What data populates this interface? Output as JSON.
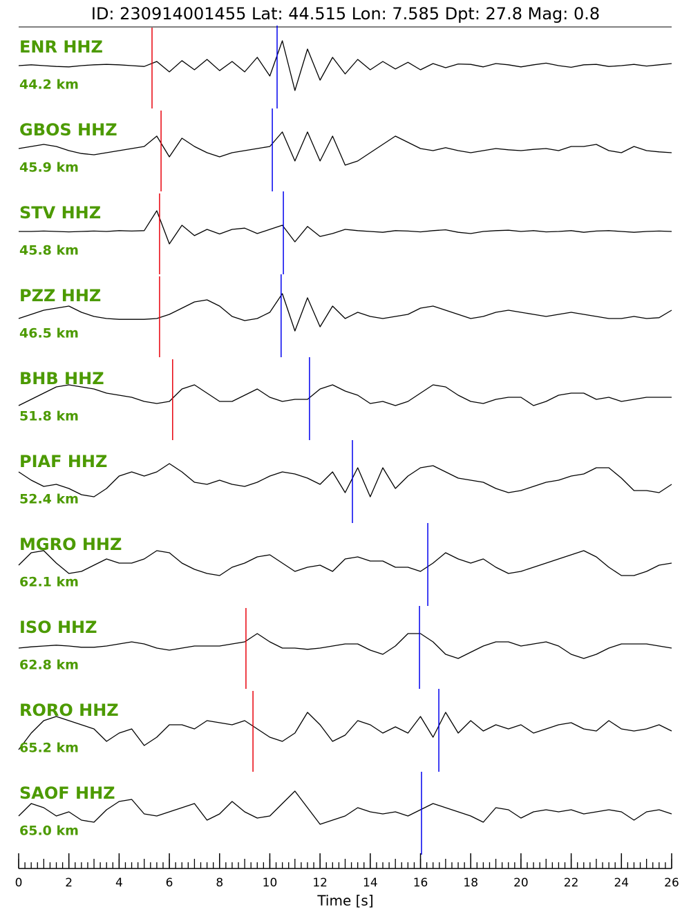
{
  "chart_data": {
    "type": "seismogram",
    "title": "ID: 230914001455 Lat:  44.515 Lon:   7.585 Dpt:    27.8 Mag:   0.8",
    "xlabel": "Time [s]",
    "xlim": [
      0,
      26
    ],
    "xticks": [
      0,
      2,
      4,
      6,
      8,
      10,
      12,
      14,
      16,
      18,
      20,
      22,
      24,
      26
    ],
    "xminor_step": 0.25,
    "ylim": [
      -1,
      1
    ],
    "label_color": "#4c9a00",
    "trace_color": "#000000",
    "p_color": "#e8000b",
    "s_color": "#0000ee",
    "x": [
      0,
      0.5,
      1,
      1.5,
      2,
      2.5,
      3,
      3.5,
      4,
      4.5,
      5,
      5.5,
      6,
      6.5,
      7,
      7.5,
      8,
      8.5,
      9,
      9.5,
      10,
      10.5,
      11,
      11.5,
      12,
      12.5,
      13,
      13.5,
      14,
      14.5,
      15,
      15.5,
      16,
      16.5,
      17,
      17.5,
      18,
      18.5,
      19,
      19.5,
      20,
      20.5,
      21,
      21.5,
      22,
      22.5,
      23,
      23.5,
      24,
      24.5,
      25,
      25.5,
      26
    ],
    "series": [
      {
        "name": "ENR HHZ",
        "distance": "44.2 km",
        "p_pick": 5.31,
        "s_pick": 10.29,
        "values": [
          0,
          0.02,
          0,
          -0.02,
          -0.03,
          0,
          0.02,
          0.03,
          0.02,
          0,
          -0.02,
          0.1,
          -0.15,
          0.12,
          -0.1,
          0.15,
          -0.12,
          0.1,
          -0.15,
          0.2,
          -0.25,
          0.6,
          -0.6,
          0.4,
          -0.35,
          0.2,
          -0.2,
          0.15,
          -0.1,
          0.1,
          -0.08,
          0.08,
          -0.1,
          0.05,
          -0.05,
          0.04,
          0.03,
          -0.03,
          0.05,
          0.02,
          -0.03,
          0.02,
          0.06,
          0,
          -0.04,
          0.02,
          0.03,
          -0.02,
          0,
          0.03,
          -0.01,
          0.02,
          0.05
        ]
      },
      {
        "name": "GBOS HHZ",
        "distance": "45.9 km",
        "p_pick": 5.67,
        "s_pick": 10.1,
        "values": [
          0,
          0.05,
          0.1,
          0.05,
          -0.05,
          -0.12,
          -0.15,
          -0.1,
          -0.05,
          0,
          0.05,
          0.3,
          -0.2,
          0.25,
          0.05,
          -0.1,
          -0.2,
          -0.1,
          -0.05,
          0,
          0.05,
          0.4,
          -0.3,
          0.4,
          -0.3,
          0.3,
          -0.4,
          -0.3,
          -0.1,
          0.1,
          0.3,
          0.15,
          0,
          -0.05,
          0.02,
          -0.05,
          -0.1,
          -0.05,
          0,
          -0.03,
          -0.05,
          -0.02,
          0,
          -0.05,
          0.05,
          0.05,
          0.1,
          -0.05,
          -0.1,
          0.05,
          -0.05,
          -0.08,
          -0.1
        ]
      },
      {
        "name": "STV HHZ",
        "distance": "45.8 km",
        "p_pick": 5.61,
        "s_pick": 10.54,
        "values": [
          0,
          0,
          0.01,
          0,
          -0.01,
          0,
          0.01,
          0,
          0.02,
          0.01,
          0.02,
          0.5,
          -0.3,
          0.15,
          -0.1,
          0.05,
          -0.06,
          0.05,
          0.08,
          -0.05,
          0.05,
          0.15,
          -0.25,
          0.12,
          -0.12,
          -0.05,
          0.05,
          0.02,
          0,
          -0.02,
          0.02,
          0.01,
          -0.01,
          0.02,
          0.04,
          -0.02,
          -0.05,
          0,
          0.02,
          0.03,
          0,
          0.02,
          -0.01,
          0,
          0.02,
          -0.02,
          0.01,
          0.02,
          0,
          -0.02,
          0,
          0.01,
          0
        ]
      },
      {
        "name": "PZZ HHZ",
        "distance": "46.5 km",
        "p_pick": 5.61,
        "s_pick": 10.45,
        "values": [
          -0.1,
          0,
          0.1,
          0.15,
          0.2,
          0.05,
          -0.05,
          -0.1,
          -0.12,
          -0.12,
          -0.12,
          -0.1,
          0,
          0.15,
          0.3,
          0.35,
          0.2,
          -0.05,
          -0.15,
          -0.1,
          0.05,
          0.5,
          -0.4,
          0.4,
          -0.3,
          0.2,
          -0.1,
          0.05,
          -0.05,
          -0.1,
          -0.05,
          0,
          0.15,
          0.2,
          0.1,
          0,
          -0.1,
          -0.05,
          0.05,
          0.1,
          0.05,
          0,
          -0.05,
          0,
          0.05,
          0,
          -0.05,
          -0.1,
          -0.1,
          -0.05,
          -0.1,
          -0.08,
          0.1
        ]
      },
      {
        "name": "BHB HHZ",
        "distance": "51.8 km",
        "p_pick": 6.13,
        "s_pick": 11.58,
        "values": [
          -0.2,
          -0.05,
          0.1,
          0.25,
          0.3,
          0.25,
          0.2,
          0.1,
          0.05,
          0,
          -0.1,
          -0.15,
          -0.1,
          0.2,
          0.3,
          0.1,
          -0.1,
          -0.1,
          0.05,
          0.2,
          0,
          -0.1,
          -0.05,
          -0.05,
          0.2,
          0.3,
          0.15,
          0.05,
          -0.15,
          -0.1,
          -0.2,
          -0.1,
          0.1,
          0.3,
          0.25,
          0.05,
          -0.1,
          -0.15,
          -0.05,
          0,
          0,
          -0.2,
          -0.1,
          0.05,
          0.1,
          0.1,
          -0.05,
          0,
          -0.1,
          -0.05,
          0,
          0,
          0
        ]
      },
      {
        "name": "PIAF HHZ",
        "distance": "52.4 km",
        "p_pick": null,
        "s_pick": 13.29,
        "values": [
          0.2,
          0,
          -0.15,
          -0.1,
          -0.2,
          -0.35,
          -0.4,
          -0.2,
          0.1,
          0.2,
          0.1,
          0.2,
          0.4,
          0.2,
          -0.05,
          -0.1,
          0,
          -0.1,
          -0.15,
          -0.05,
          0.1,
          0.2,
          0.15,
          0.05,
          -0.1,
          0.2,
          -0.3,
          0.3,
          -0.4,
          0.3,
          -0.2,
          0.1,
          0.3,
          0.35,
          0.2,
          0.05,
          0,
          -0.05,
          -0.2,
          -0.3,
          -0.25,
          -0.15,
          -0.05,
          0,
          0.1,
          0.15,
          0.3,
          0.3,
          0.05,
          -0.25,
          -0.25,
          -0.3,
          -0.1
        ]
      },
      {
        "name": "MGRO HHZ",
        "distance": "62.1 km",
        "p_pick": null,
        "s_pick": 16.29,
        "values": [
          -0.05,
          0.25,
          0.3,
          0,
          -0.25,
          -0.2,
          -0.05,
          0.1,
          0,
          0,
          0.1,
          0.3,
          0.25,
          0,
          -0.15,
          -0.25,
          -0.3,
          -0.1,
          0,
          0.15,
          0.2,
          0,
          -0.2,
          -0.1,
          -0.05,
          -0.2,
          0.1,
          0.15,
          0.05,
          0.05,
          -0.1,
          -0.1,
          -0.2,
          0,
          0.25,
          0.1,
          0,
          0.1,
          -0.1,
          -0.25,
          -0.2,
          -0.1,
          0,
          0.1,
          0.2,
          0.3,
          0.15,
          -0.1,
          -0.3,
          -0.3,
          -0.2,
          -0.05,
          0
        ]
      },
      {
        "name": "ISO HHZ",
        "distance": "62.8 km",
        "p_pick": 9.05,
        "s_pick": 15.96,
        "values": [
          -0.05,
          -0.02,
          0,
          0.02,
          0,
          -0.03,
          -0.03,
          0,
          0.05,
          0.1,
          0.05,
          -0.05,
          -0.1,
          -0.05,
          0,
          0,
          0,
          0.05,
          0.1,
          0.3,
          0.1,
          -0.05,
          -0.05,
          -0.08,
          -0.05,
          0,
          0.05,
          0.05,
          -0.1,
          -0.2,
          0,
          0.3,
          0.3,
          0.1,
          -0.2,
          -0.3,
          -0.15,
          0,
          0.1,
          0.1,
          0,
          0.05,
          0.1,
          0,
          -0.2,
          -0.3,
          -0.2,
          -0.05,
          0.05,
          0.05,
          0.05,
          0,
          -0.05
        ]
      },
      {
        "name": "RORO HHZ",
        "distance": "65.2 km",
        "p_pick": 9.33,
        "s_pick": 16.73,
        "values": [
          -0.5,
          -0.1,
          0.2,
          0.3,
          0.2,
          0.1,
          0,
          -0.3,
          -0.1,
          0,
          -0.4,
          -0.2,
          0.1,
          0.1,
          0,
          0.2,
          0.15,
          0.1,
          0.2,
          0,
          -0.2,
          -0.3,
          -0.1,
          0.4,
          0.1,
          -0.3,
          -0.15,
          0.2,
          0.1,
          -0.1,
          0.05,
          -0.1,
          0.3,
          -0.2,
          0.4,
          -0.1,
          0.2,
          -0.05,
          0.1,
          0,
          0.1,
          -0.1,
          0,
          0.1,
          0.15,
          0,
          -0.05,
          0.2,
          0,
          -0.05,
          0,
          0.1,
          -0.05
        ]
      },
      {
        "name": "SAOF HHZ",
        "distance": "65.0 km",
        "p_pick": null,
        "s_pick": 16.04,
        "values": [
          -0.1,
          0.2,
          0.1,
          -0.1,
          0,
          -0.2,
          -0.25,
          0.05,
          0.25,
          0.3,
          -0.05,
          -0.1,
          0,
          0.1,
          0.2,
          -0.2,
          -0.05,
          0.25,
          0,
          -0.15,
          -0.1,
          0.2,
          0.5,
          0.1,
          -0.3,
          -0.2,
          -0.1,
          0.1,
          0,
          -0.05,
          0,
          -0.1,
          0.05,
          0.2,
          0.1,
          0,
          -0.1,
          -0.25,
          0.1,
          0.05,
          -0.15,
          0,
          0.05,
          0,
          0.05,
          -0.05,
          0,
          0.05,
          0,
          -0.2,
          0,
          0.05,
          -0.05
        ]
      }
    ]
  }
}
